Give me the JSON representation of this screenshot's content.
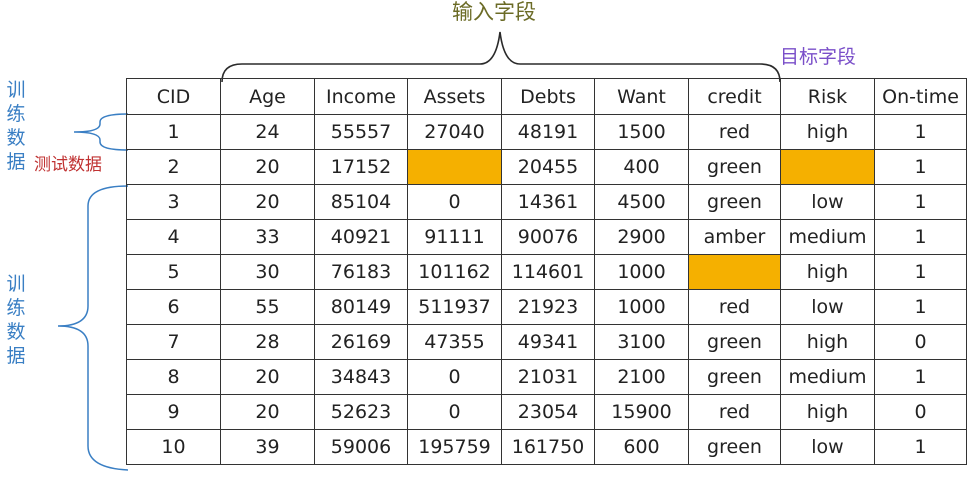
{
  "labels": {
    "input_fields": "输入字段",
    "target_field": "目标字段",
    "train_data": "训练数据",
    "test_data": "测试数据"
  },
  "colors": {
    "masked_cell": "#f5b000",
    "input_label": "#6b6b26",
    "target_label": "#7a4fc9",
    "train_label": "#3a7fc4",
    "test_label": "#c03232"
  },
  "table": {
    "headers": [
      "CID",
      "Age",
      "Income",
      "Assets",
      "Debts",
      "Want",
      "credit",
      "Risk",
      "On-time"
    ],
    "rows": [
      [
        "1",
        "24",
        "55557",
        "27040",
        "48191",
        "1500",
        "red",
        "high",
        "1"
      ],
      [
        "2",
        "20",
        "17152",
        "",
        "20455",
        "400",
        "green",
        "",
        "1"
      ],
      [
        "3",
        "20",
        "85104",
        "0",
        "14361",
        "4500",
        "green",
        "low",
        "1"
      ],
      [
        "4",
        "33",
        "40921",
        "91111",
        "90076",
        "2900",
        "amber",
        "medium",
        "1"
      ],
      [
        "5",
        "30",
        "76183",
        "101162",
        "114601",
        "1000",
        "",
        "high",
        "1"
      ],
      [
        "6",
        "55",
        "80149",
        "511937",
        "21923",
        "1000",
        "red",
        "low",
        "1"
      ],
      [
        "7",
        "28",
        "26169",
        "47355",
        "49341",
        "3100",
        "green",
        "high",
        "0"
      ],
      [
        "8",
        "20",
        "34843",
        "0",
        "21031",
        "2100",
        "green",
        "medium",
        "1"
      ],
      [
        "9",
        "20",
        "52623",
        "0",
        "23054",
        "15900",
        "red",
        "high",
        "0"
      ],
      [
        "10",
        "39",
        "59006",
        "195759",
        "161750",
        "600",
        "green",
        "low",
        "1"
      ]
    ]
  }
}
